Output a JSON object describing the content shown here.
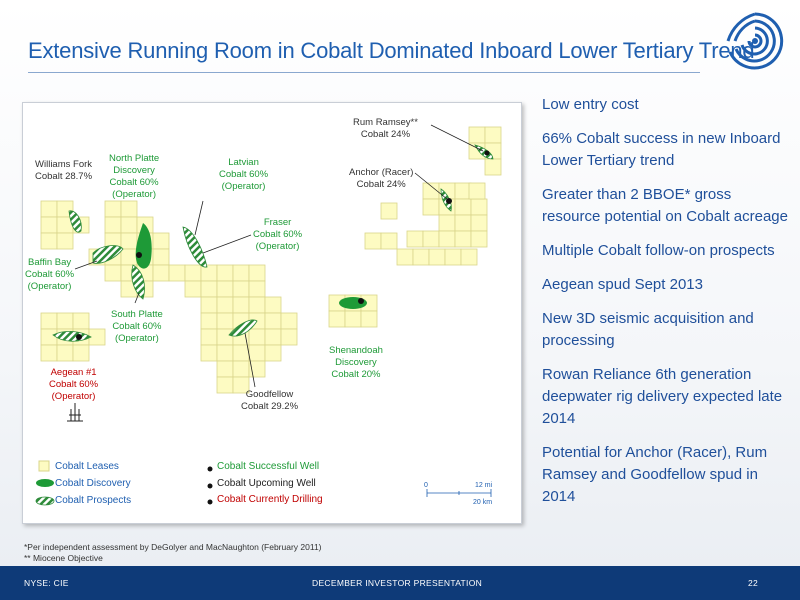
{
  "slide": {
    "title": "Extensive Running Room in Cobalt Dominated Inboard Lower Tertiary Trend"
  },
  "map": {
    "labels": {
      "williams_fork": "Williams Fork\nCobalt 28.7%",
      "north_platte": "North Platte\nDiscovery\nCobalt 60%\n(Operator)",
      "latvian": "Latvian\nCobalt 60%\n(Operator)",
      "rum_ramsey": "Rum Ramsey**\nCobalt 24%",
      "anchor": "Anchor (Racer)\nCobalt 24%",
      "fraser": "Fraser\nCobalt 60%\n(Operator)",
      "baffin_bay": "Baffin Bay\nCobalt 60%\n(Operator)",
      "south_platte": "South Platte\nCobalt 60%\n(Operator)",
      "shenandoah": "Shenandoah\nDiscovery\nCobalt 20%",
      "aegean": "Aegean #1\nCobalt 60%\n(Operator)",
      "goodfellow": "Goodfellow\nCobalt 29.2%"
    },
    "legend": {
      "leases": "Cobalt Leases",
      "discovery": "Cobalt Discovery",
      "prospects": "Cobalt Prospects",
      "successful_well": "Cobalt Successful Well",
      "upcoming_well": "Cobalt Upcoming Well",
      "drilling_well": "Cobalt Currently Drilling"
    },
    "scale": {
      "zero": "0",
      "mi": "12 mi",
      "km": "20 km"
    },
    "colors": {
      "lease": "#fdfbc2",
      "discovery": "#1e9a37",
      "prospect_stripe": "#2e8b3a"
    }
  },
  "bullets": [
    "Low entry cost",
    "66% Cobalt success in new Inboard Lower Tertiary trend",
    "Greater than 2 BBOE* gross resource potential on Cobalt acreage",
    "Multiple Cobalt follow-on prospects",
    "Aegean spud Sept 2013",
    "New 3D seismic acquisition and processing",
    "Rowan Reliance 6th generation deepwater rig delivery expected late 2014",
    "Potential for Anchor (Racer), Rum Ramsey and Goodfellow spud in 2014"
  ],
  "footnotes": {
    "line1": "*Per independent assessment by DeGolyer and MacNaughton (February 2011)",
    "line2": "** Miocene Objective"
  },
  "footer": {
    "ticker": "NYSE: CIE",
    "presentation": "DECEMBER INVESTOR PRESENTATION",
    "page": "22"
  }
}
